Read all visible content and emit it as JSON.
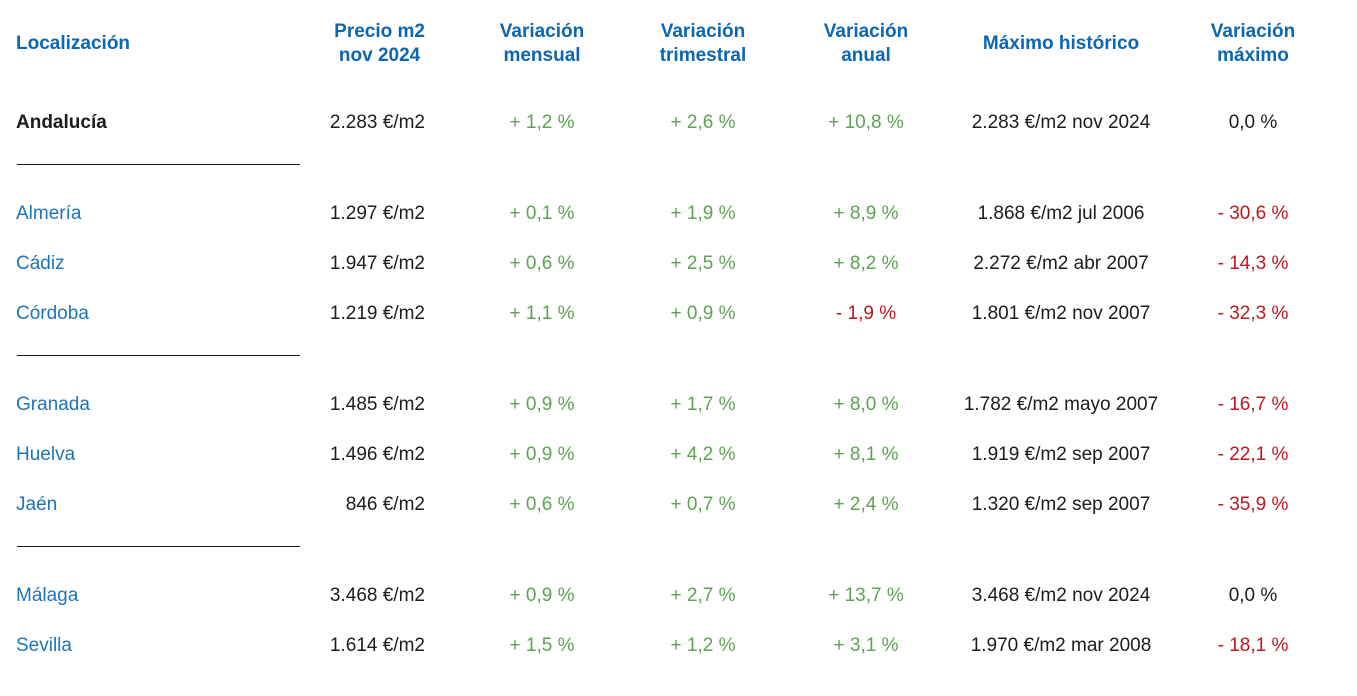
{
  "colors": {
    "header_blue": "#0c66b1",
    "link_blue": "#1e74ba",
    "text_black": "#1c1c1c",
    "positive_green": "#5da353",
    "negative_red": "#bf161f",
    "divider_line": "#1b1b1b"
  },
  "table": {
    "columns": [
      {
        "id": "localizacion",
        "line1": "Localización",
        "line2": ""
      },
      {
        "id": "precio",
        "line1": "Precio m2",
        "line2": "nov 2024"
      },
      {
        "id": "variacion-mensual",
        "line1": "Variación",
        "line2": "mensual"
      },
      {
        "id": "variacion-trimestral",
        "line1": "Variación",
        "line2": "trimestral"
      },
      {
        "id": "variacion-anual",
        "line1": "Variación",
        "line2": "anual"
      },
      {
        "id": "maximo-historico",
        "line1": "Máximo histórico",
        "line2": ""
      },
      {
        "id": "variacion-maximo",
        "line1": "Variación",
        "line2": "máximo"
      }
    ],
    "groups": [
      {
        "rows": [
          {
            "location": "Andalucía",
            "is_region": true,
            "price": "2.283 €/m2",
            "monthly": "+ 1,2 %",
            "monthly_trend": "up",
            "quarterly": "+ 2,6 %",
            "quarterly_trend": "up",
            "annual": "+ 10,8 %",
            "annual_trend": "up",
            "historical_max": "2.283 €/m2 nov 2024",
            "max_variation": "0,0 %",
            "max_variation_trend": "neutral"
          }
        ]
      },
      {
        "rows": [
          {
            "location": "Almería",
            "is_region": false,
            "price": "1.297 €/m2",
            "monthly": "+ 0,1 %",
            "monthly_trend": "up",
            "quarterly": "+ 1,9 %",
            "quarterly_trend": "up",
            "annual": "+ 8,9 %",
            "annual_trend": "up",
            "historical_max": "1.868 €/m2 jul 2006",
            "max_variation": "- 30,6 %",
            "max_variation_trend": "down"
          },
          {
            "location": "Cádiz",
            "is_region": false,
            "price": "1.947 €/m2",
            "monthly": "+ 0,6 %",
            "monthly_trend": "up",
            "quarterly": "+ 2,5 %",
            "quarterly_trend": "up",
            "annual": "+ 8,2 %",
            "annual_trend": "up",
            "historical_max": "2.272 €/m2 abr 2007",
            "max_variation": "- 14,3 %",
            "max_variation_trend": "down"
          },
          {
            "location": "Córdoba",
            "is_region": false,
            "price": "1.219 €/m2",
            "monthly": "+ 1,1 %",
            "monthly_trend": "up",
            "quarterly": "+ 0,9 %",
            "quarterly_trend": "up",
            "annual": "- 1,9 %",
            "annual_trend": "down",
            "historical_max": "1.801 €/m2 nov 2007",
            "max_variation": "- 32,3 %",
            "max_variation_trend": "down"
          }
        ]
      },
      {
        "rows": [
          {
            "location": "Granada",
            "is_region": false,
            "price": "1.485 €/m2",
            "monthly": "+ 0,9 %",
            "monthly_trend": "up",
            "quarterly": "+ 1,7 %",
            "quarterly_trend": "up",
            "annual": "+ 8,0 %",
            "annual_trend": "up",
            "historical_max": "1.782 €/m2 mayo 2007",
            "max_variation": "- 16,7 %",
            "max_variation_trend": "down"
          },
          {
            "location": "Huelva",
            "is_region": false,
            "price": "1.496 €/m2",
            "monthly": "+ 0,9 %",
            "monthly_trend": "up",
            "quarterly": "+ 4,2 %",
            "quarterly_trend": "up",
            "annual": "+ 8,1 %",
            "annual_trend": "up",
            "historical_max": "1.919 €/m2 sep 2007",
            "max_variation": "- 22,1 %",
            "max_variation_trend": "down"
          },
          {
            "location": "Jaén",
            "is_region": false,
            "price": "846 €/m2",
            "monthly": "+ 0,6 %",
            "monthly_trend": "up",
            "quarterly": "+ 0,7 %",
            "quarterly_trend": "up",
            "annual": "+ 2,4 %",
            "annual_trend": "up",
            "historical_max": "1.320 €/m2 sep 2007",
            "max_variation": "- 35,9 %",
            "max_variation_trend": "down"
          }
        ]
      },
      {
        "rows": [
          {
            "location": "Málaga",
            "is_region": false,
            "price": "3.468 €/m2",
            "monthly": "+ 0,9 %",
            "monthly_trend": "up",
            "quarterly": "+ 2,7 %",
            "quarterly_trend": "up",
            "annual": "+ 13,7 %",
            "annual_trend": "up",
            "historical_max": "3.468 €/m2 nov 2024",
            "max_variation": "0,0 %",
            "max_variation_trend": "neutral"
          },
          {
            "location": "Sevilla",
            "is_region": false,
            "price": "1.614 €/m2",
            "monthly": "+ 1,5 %",
            "monthly_trend": "up",
            "quarterly": "+ 1,2 %",
            "quarterly_trend": "up",
            "annual": "+ 3,1 %",
            "annual_trend": "up",
            "historical_max": "1.970 €/m2 mar 2008",
            "max_variation": "- 18,1 %",
            "max_variation_trend": "down"
          }
        ]
      }
    ]
  }
}
